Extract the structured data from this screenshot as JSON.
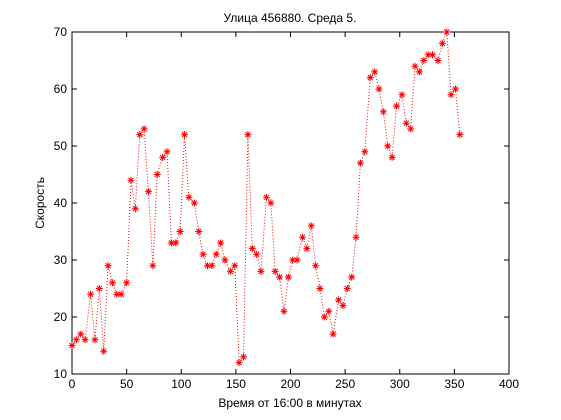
{
  "chart_data": {
    "type": "line",
    "title": "Улица 456880. Среда 5.",
    "x_label": "Время от 16:00 в минутах",
    "y_label": "Скорость",
    "x": [
      0,
      4,
      8,
      12,
      17,
      21,
      25,
      29,
      33,
      37,
      41,
      45,
      50,
      54,
      58,
      62,
      66,
      70,
      74,
      78,
      83,
      87,
      91,
      95,
      99,
      103,
      107,
      112,
      116,
      120,
      124,
      128,
      132,
      136,
      140,
      145,
      149,
      153,
      157,
      161,
      165,
      169,
      173,
      178,
      182,
      186,
      190,
      194,
      198,
      202,
      206,
      211,
      215,
      219,
      223,
      227,
      231,
      235,
      239,
      244,
      248,
      252,
      256,
      260,
      264,
      268,
      273,
      277,
      281,
      285,
      289,
      293,
      297,
      302,
      306,
      310,
      314,
      318,
      322,
      326,
      330,
      335,
      339,
      343,
      347,
      351,
      355
    ],
    "series": [
      {
        "color": "#ff0000",
        "values": [
          15,
          16,
          17,
          16,
          24,
          16,
          25,
          14,
          29,
          26,
          24,
          24,
          26,
          44,
          39,
          52,
          53,
          42,
          29,
          45,
          48,
          49,
          33,
          33,
          35,
          52,
          41,
          40,
          35,
          31,
          29,
          29,
          31,
          33,
          30,
          28,
          29,
          12,
          13,
          52,
          32,
          31,
          28,
          41,
          40,
          28,
          27,
          21,
          27,
          30,
          30,
          34,
          32,
          36,
          29,
          25,
          20,
          21,
          17,
          23,
          22,
          25,
          27,
          34,
          47,
          49,
          62,
          63,
          60,
          56,
          50,
          48,
          57,
          59,
          54,
          53,
          64,
          63,
          65,
          66,
          66,
          65,
          68,
          70,
          59,
          60,
          52
        ]
      }
    ],
    "xlim": [
      0,
      400
    ],
    "xticks": [
      0,
      50,
      100,
      150,
      200,
      250,
      300,
      350,
      400
    ],
    "ylim": [
      10,
      70
    ],
    "yticks": [
      10,
      20,
      30,
      40,
      50,
      60,
      70
    ],
    "grid": false
  }
}
